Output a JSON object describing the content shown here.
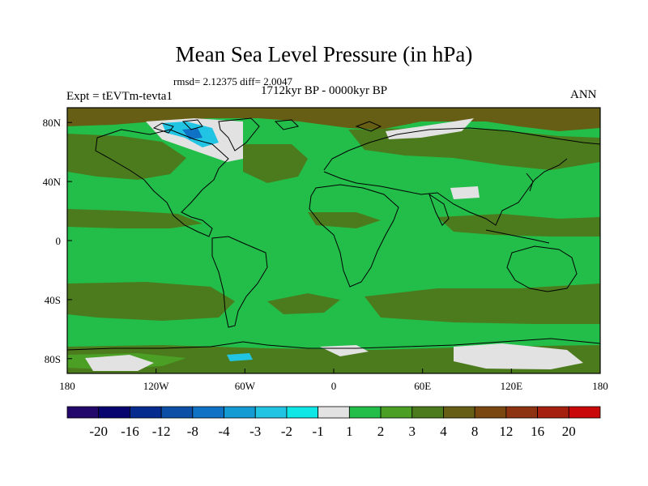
{
  "header": {
    "title": "Mean Sea Level Pressure (in hPa)",
    "stats": "rmsd= 2.12375 diff= 2.0047",
    "period": "1712kyr BP - 0000kyr BP",
    "experiment": "Expt = tEVTm-tevta1",
    "season": "ANN"
  },
  "map": {
    "lat_range": [
      -90,
      90
    ],
    "lon_range": [
      -180,
      180
    ],
    "lat_ticks": [
      {
        "value": 80,
        "label": "80N"
      },
      {
        "value": 40,
        "label": "40N"
      },
      {
        "value": 0,
        "label": "0"
      },
      {
        "value": -40,
        "label": "40S"
      },
      {
        "value": -80,
        "label": "80S"
      }
    ],
    "lon_ticks": [
      {
        "value": -180,
        "label": "180"
      },
      {
        "value": -120,
        "label": "120W"
      },
      {
        "value": -60,
        "label": "60W"
      },
      {
        "value": 0,
        "label": "0"
      },
      {
        "value": 60,
        "label": "60E"
      },
      {
        "value": 120,
        "label": "120E"
      },
      {
        "value": 180,
        "label": "180"
      }
    ]
  },
  "colorbar": {
    "colors": [
      "#23076b",
      "#07036f",
      "#062b8e",
      "#0c4fa6",
      "#1072c4",
      "#159bd3",
      "#21c5e3",
      "#0fe6e6",
      "#e2e2e2",
      "#23be4a",
      "#4b9f24",
      "#4b7b1d",
      "#655e14",
      "#7a4710",
      "#8e3311",
      "#a5200f",
      "#c90909"
    ],
    "labels": [
      "-20",
      "-16",
      "-12",
      "-8",
      "-4",
      "-3",
      "-2",
      "-1",
      "1",
      "2",
      "3",
      "4",
      "8",
      "12",
      "16",
      "20"
    ]
  },
  "colors": {
    "green2": "#23be4a",
    "green3": "#4b9f24",
    "olive4": "#4b7b1d",
    "brown8": "#655e14",
    "white1": "#e2e2e2",
    "cyan": "#21c5e3",
    "blue": "#1072c4"
  }
}
